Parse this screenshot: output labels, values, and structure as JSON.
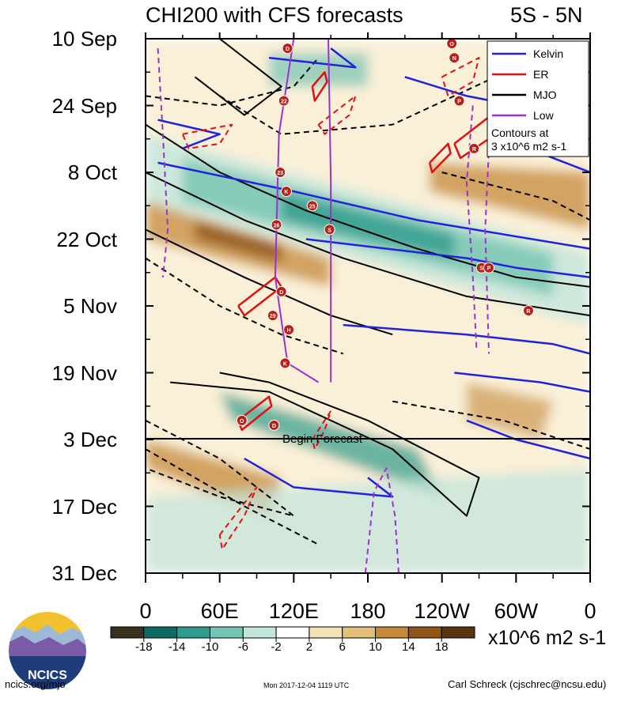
{
  "chart_data": {
    "type": "heatmap",
    "title": "CHI200 with CFS forecasts",
    "latitude_band": "5S - 5N",
    "xlabel": "",
    "x_ticks": [
      "0",
      "60E",
      "120E",
      "180",
      "120W",
      "60W",
      "0"
    ],
    "x_range": [
      0,
      360
    ],
    "y_ticks": [
      "10 Sep",
      "24 Sep",
      "8 Oct",
      "22 Oct",
      "5 Nov",
      "19 Nov",
      "3 Dec",
      "17 Dec",
      "31 Dec"
    ],
    "y_range_days": [
      0,
      112
    ],
    "forecast_start_label": "Begin Forecast",
    "forecast_start_day": 84,
    "colorbar": {
      "labels": [
        "-18",
        "-14",
        "-10",
        "-6",
        "-2",
        "2",
        "6",
        "10",
        "14",
        "18"
      ],
      "unit": "x10^6 m2 s-1",
      "colors": [
        "#3d2f1f",
        "#0e6b64",
        "#2f9b8c",
        "#76c4b3",
        "#c2e6dc",
        "#ffffff",
        "#f5e3b8",
        "#e3c07a",
        "#c4893a",
        "#8f5417",
        "#5a3512"
      ]
    },
    "legend": [
      {
        "name": "Kelvin",
        "color": "#2222dd"
      },
      {
        "name": "ER",
        "color": "#dd1111"
      },
      {
        "name": "MJO",
        "color": "#000000"
      },
      {
        "name": "Low",
        "color": "#9933cc"
      }
    ],
    "contour_note": "Contours at\n3 x10^6 m2 s-1",
    "storm_markers": [
      {
        "label": "D",
        "lon": 115,
        "day": 2
      },
      {
        "label": "22",
        "lon": 112,
        "day": 13
      },
      {
        "label": "O",
        "lon": 248,
        "day": 1
      },
      {
        "label": "N",
        "lon": 250,
        "day": 4
      },
      {
        "label": "P",
        "lon": 254,
        "day": 13
      },
      {
        "label": "R",
        "lon": 266,
        "day": 23
      },
      {
        "label": "23",
        "lon": 109,
        "day": 28
      },
      {
        "label": "K",
        "lon": 114,
        "day": 32
      },
      {
        "label": "25",
        "lon": 135,
        "day": 35
      },
      {
        "label": "26",
        "lon": 106,
        "day": 39
      },
      {
        "label": "S",
        "lon": 149,
        "day": 40
      },
      {
        "label": "S",
        "lon": 272,
        "day": 48
      },
      {
        "label": "P",
        "lon": 278,
        "day": 48
      },
      {
        "label": "D",
        "lon": 110,
        "day": 53
      },
      {
        "label": "29",
        "lon": 103,
        "day": 58
      },
      {
        "label": "R",
        "lon": 310,
        "day": 57
      },
      {
        "label": "H",
        "lon": 116,
        "day": 61
      },
      {
        "label": "K",
        "lon": 113,
        "day": 68
      },
      {
        "label": "O",
        "lon": 78,
        "day": 80
      },
      {
        "label": "D",
        "lon": 104,
        "day": 81
      }
    ]
  },
  "footer": {
    "left": "ncics.org/mjo",
    "center": "Mon 2017-12-04 1119 UTC",
    "right": "Carl Schreck (cjschrec@ncsu.edu)",
    "logo_text": "NCICS"
  }
}
